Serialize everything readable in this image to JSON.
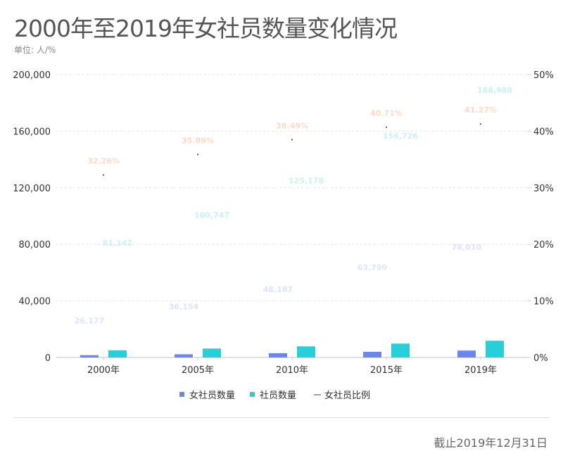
{
  "chart_data": {
    "type": "bar",
    "title": "2000年至2019年女社员数量变化情况",
    "unit": "单位: 人/%",
    "categories": [
      "2000年",
      "2005年",
      "2010年",
      "2015年",
      "2019年"
    ],
    "series": [
      {
        "name": "女社员数量",
        "kind": "bar",
        "axis": "left",
        "color": "#6b86f0",
        "label_color": "#dde3fb",
        "values": [
          26177,
          36154,
          48187,
          63799,
          78010
        ],
        "labels": [
          "26,177",
          "36,154",
          "48,187",
          "63,799",
          "78,010"
        ]
      },
      {
        "name": "社员数量",
        "kind": "bar",
        "axis": "left",
        "color": "#26cfd9",
        "label_color": "#c9f1f4",
        "values": [
          81142,
          100747,
          125178,
          156726,
          188988
        ],
        "labels": [
          "81,142",
          "100,747",
          "125,178",
          "156,726",
          "188,988"
        ]
      },
      {
        "name": "女社员比例",
        "kind": "line",
        "axis": "right",
        "color": "#9a7a6a",
        "label_color": "#fbd9c6",
        "values": [
          32.26,
          35.89,
          38.49,
          40.71,
          41.27
        ],
        "labels": [
          "32.26%",
          "35.89%",
          "38.49%",
          "40.71%",
          "41.27%"
        ]
      }
    ],
    "y_left": {
      "ticks": [
        "0",
        "40,000",
        "80,000",
        "120,000",
        "160,000",
        "200,000"
      ],
      "range": [
        0,
        200000
      ]
    },
    "y_right": {
      "ticks": [
        "0%",
        "10%",
        "20%",
        "30%",
        "40%",
        "50%"
      ],
      "range": [
        0,
        50
      ]
    },
    "grid": true,
    "legend": "bottom"
  },
  "note": "截止2019年12月31日"
}
